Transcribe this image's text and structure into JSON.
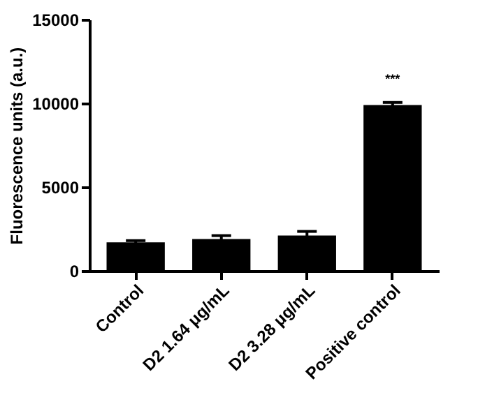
{
  "chart_data": {
    "type": "bar",
    "ylabel": "Fluorescence units (a.u.)",
    "categories": [
      "Control",
      "D2 1.64 μg/mL",
      "D2 3.28 μg/mL",
      "Positive control"
    ],
    "values": [
      1700,
      1900,
      2100,
      9900
    ],
    "errors": [
      100,
      200,
      250,
      150
    ],
    "color": "#000000",
    "ylim": [
      0,
      15000
    ],
    "yticks": [
      0,
      5000,
      10000,
      15000
    ],
    "grid": false,
    "annotations": [
      "***"
    ]
  }
}
